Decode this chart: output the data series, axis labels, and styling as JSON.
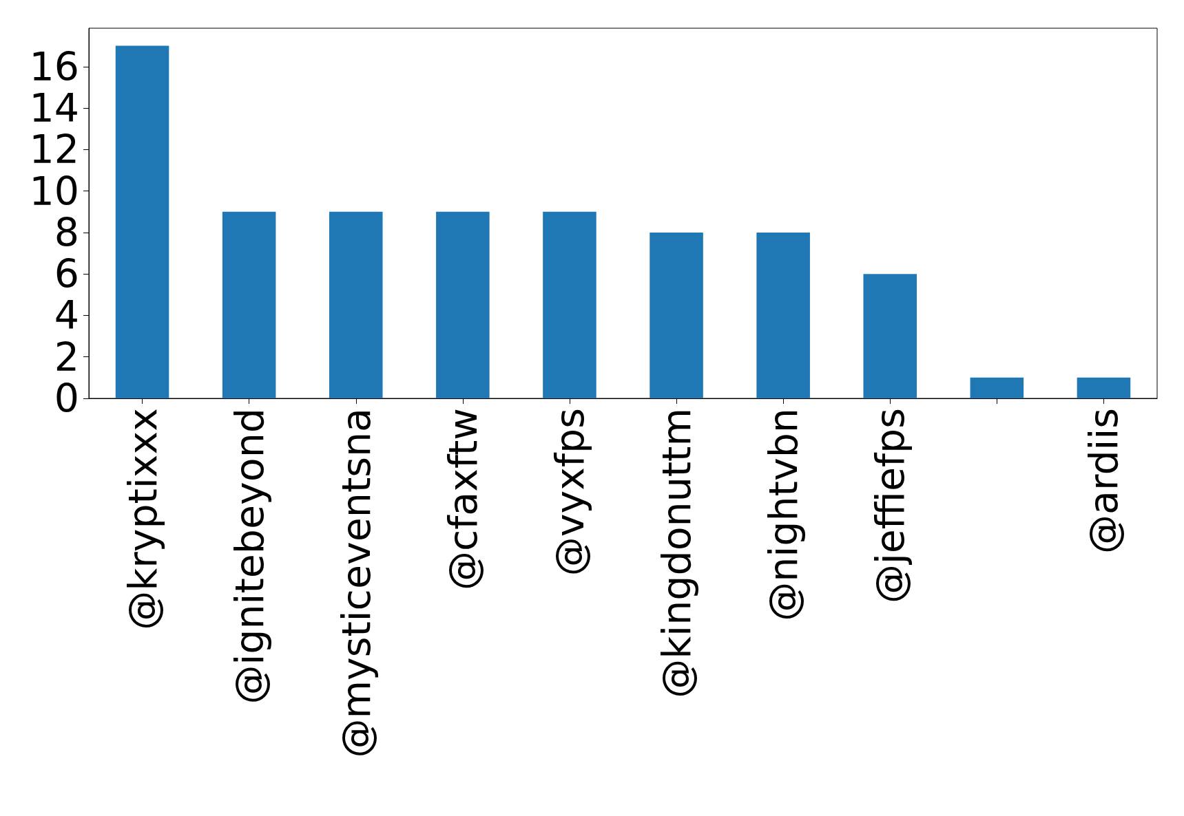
{
  "chart_data": {
    "type": "bar",
    "categories": [
      "@kryptixxx",
      "@ignitebeyond",
      "@mysticeventsna",
      "@cfaxftw",
      "@vyxfps",
      "@kingdonuttm",
      "@nightvbn",
      "@jeffiefps",
      null,
      "@ardiis"
    ],
    "values": [
      17,
      9,
      9,
      9,
      9,
      8,
      8,
      6,
      1,
      1
    ],
    "color": "#1f77b4",
    "ylim": [
      0,
      17.85
    ],
    "yticks": [
      0,
      2,
      4,
      6,
      8,
      10,
      12,
      14,
      16
    ],
    "grid": false
  }
}
